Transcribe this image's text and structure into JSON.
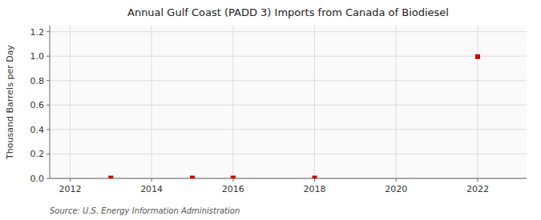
{
  "chart_data": {
    "type": "scatter",
    "title": "Annual Gulf Coast (PADD 3) Imports from Canada of Biodiesel",
    "y_label": "Thousand Barrels per Day",
    "annotations": [
      "Source: U.S. Energy Information Administration"
    ],
    "x": [
      2013,
      2015,
      2016,
      2018,
      2022
    ],
    "values": [
      0.003,
      0.003,
      0.003,
      0.003,
      0.996
    ],
    "color": "#cc0000",
    "marker": "square",
    "xlim": [
      2011.5,
      2023.2
    ],
    "ylim": [
      0.0,
      1.25
    ],
    "xticks": [
      2012,
      2014,
      2016,
      2018,
      2020,
      2022
    ],
    "yticks": [
      {
        "value": 0.0,
        "label": "0.0"
      },
      0.2,
      0.4,
      0.6,
      0.8,
      {
        "value": 1.0,
        "label": "1.0"
      },
      1.2
    ],
    "grid": true
  }
}
